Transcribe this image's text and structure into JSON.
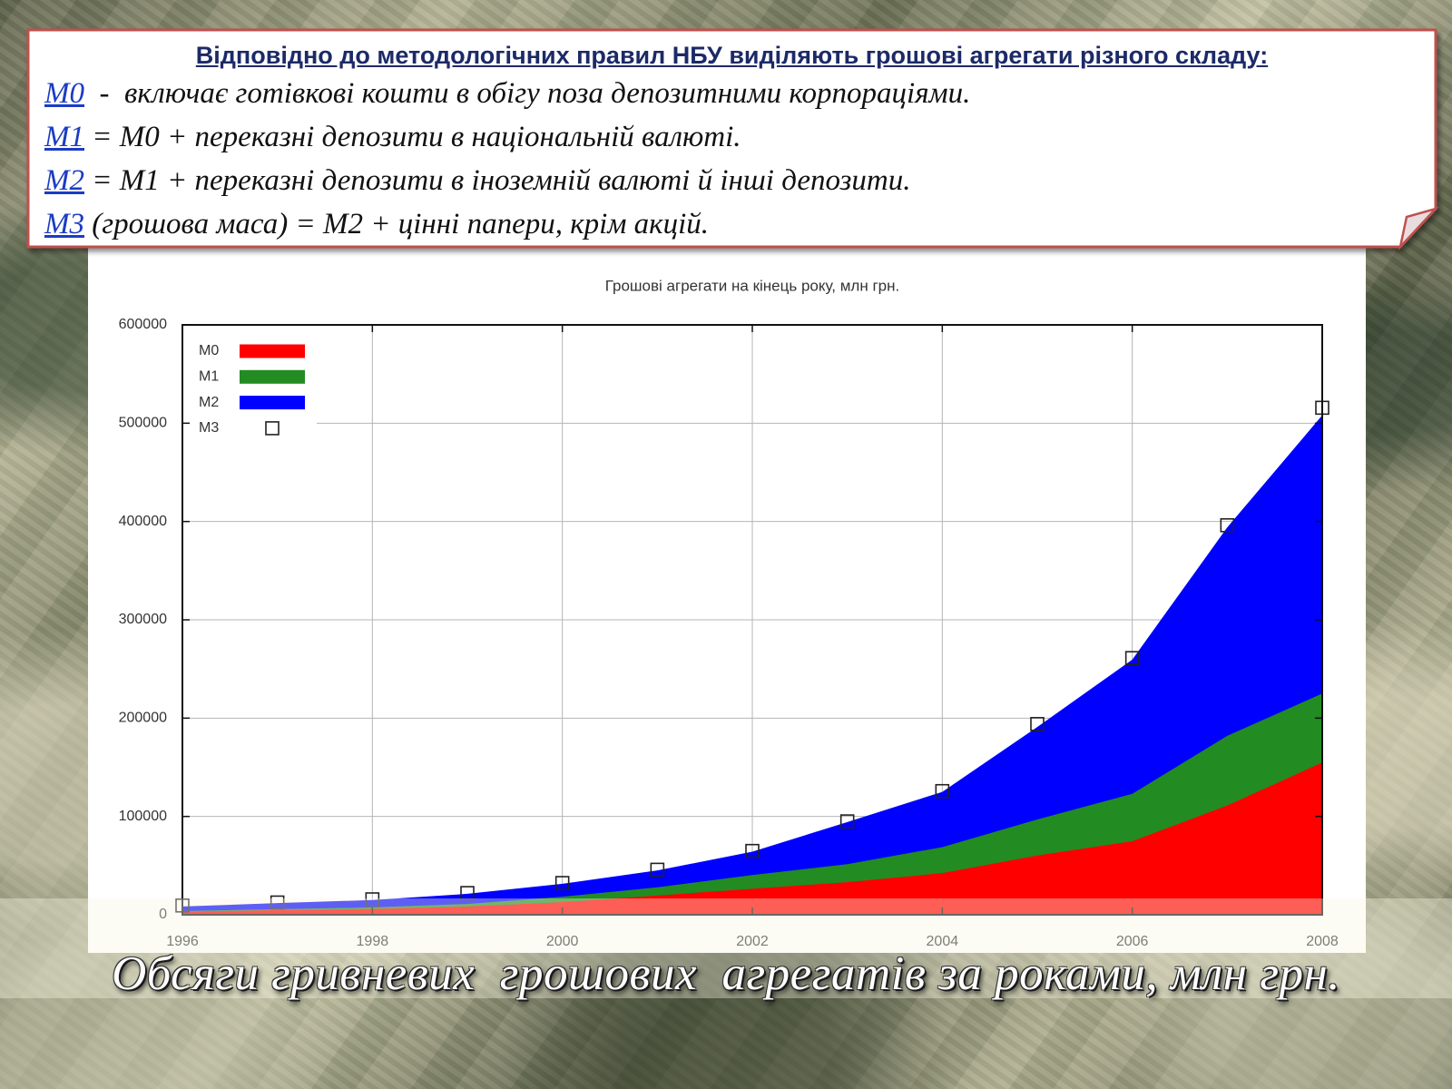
{
  "slide": {
    "definitions": {
      "heading": "Відповідно до методологічних правил НБУ виділяють грошові агрегати різного складу:",
      "items": [
        {
          "term": "М0",
          "text": "  -  включає готівкові кошти в обігу поза депозитними корпораціями."
        },
        {
          "term": "М1",
          "text": " = М0 + переказні депозити в національній валюті."
        },
        {
          "term": "М2",
          "text": " = М1 + переказні депозити в іноземній валюті й інші депозити."
        },
        {
          "term": "М3",
          "text": " (грошова маса) = М2 + цінні папери, крім акцій."
        }
      ]
    },
    "caption": "Обсяги гривневих  грошових  агрегатів за роками, млн грн."
  },
  "theme": {
    "box_border": "#c0504d",
    "link_color": "#1b3cc4",
    "heading_color": "#1c2a68"
  },
  "chart_data": {
    "type": "area",
    "title": "Грошові агрегати на кінець року, млн грн.",
    "x": [
      1996,
      1997,
      1998,
      1999,
      2000,
      2001,
      2002,
      2003,
      2004,
      2005,
      2006,
      2007,
      2008
    ],
    "xticks": [
      1996,
      1998,
      2000,
      2002,
      2004,
      2006,
      2008
    ],
    "yticks": [
      0,
      100000,
      200000,
      300000,
      400000,
      500000,
      600000
    ],
    "xlim": [
      1996,
      2008
    ],
    "ylim": [
      0,
      600000
    ],
    "grid": true,
    "legend": "top-left",
    "series": [
      {
        "name": "M0",
        "type": "area",
        "color": "#ff0000",
        "values": [
          3000,
          4700,
          5900,
          8300,
          12800,
          19500,
          26400,
          33100,
          42300,
          60200,
          74800,
          111100,
          154800
        ]
      },
      {
        "name": "M1",
        "type": "area",
        "color": "#228b22",
        "values": [
          3800,
          5600,
          7500,
          11000,
          18300,
          27900,
          40400,
          51500,
          68800,
          96900,
          123000,
          182000,
          225000
        ]
      },
      {
        "name": "M2",
        "type": "area",
        "color": "#0000ff",
        "values": [
          8400,
          11900,
          15000,
          21300,
          31500,
          45100,
          64200,
          94300,
          125000,
          191000,
          259500,
          394000,
          508000
        ]
      },
      {
        "name": "M3",
        "type": "scatter",
        "color": "#222222",
        "values": [
          9400,
          12500,
          15700,
          22100,
          32300,
          45800,
          64900,
          95000,
          125800,
          194000,
          261100,
          396200,
          515700
        ]
      }
    ]
  }
}
